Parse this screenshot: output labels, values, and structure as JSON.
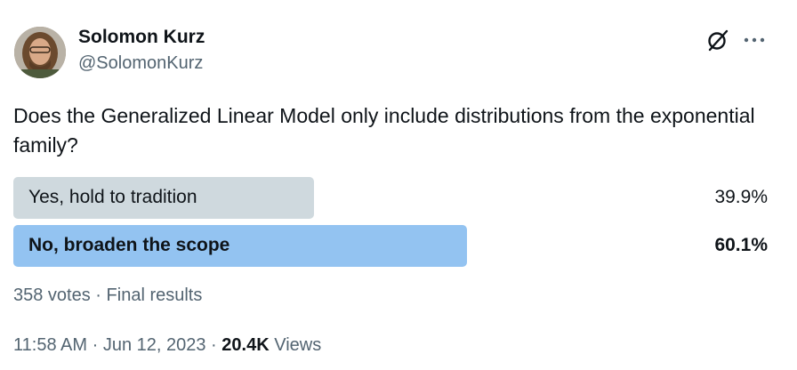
{
  "author": {
    "name": "Solomon Kurz",
    "handle": "@SolomonKurz"
  },
  "question": "Does the Generalized Linear Model only include distributions from the exponential family?",
  "poll": {
    "options": [
      {
        "label": "Yes, hold to tradition",
        "percent_text": "39.9%",
        "percent": 39.9,
        "winner": false
      },
      {
        "label": "No, broaden the scope",
        "percent_text": "60.1%",
        "percent": 60.1,
        "winner": true
      }
    ],
    "votes": "358 votes",
    "separator": "·",
    "status": "Final results"
  },
  "meta": {
    "time": "11:58 AM",
    "separator": "·",
    "date": "Jun 12, 2023",
    "views_count": "20.4K",
    "views_label": "Views"
  },
  "icons": {
    "grok": "grok-icon",
    "more": "more-icon"
  },
  "colors": {
    "text_primary": "#0f1419",
    "text_secondary": "#536471",
    "bar_loser": "#cfd9de",
    "bar_winner": "#93c3f1"
  }
}
